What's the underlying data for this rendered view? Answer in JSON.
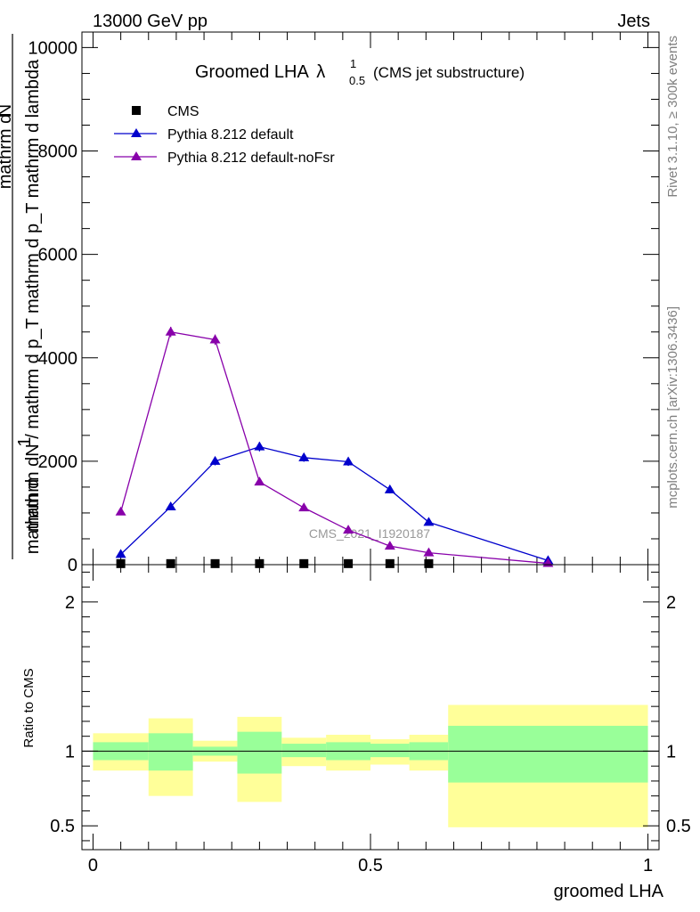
{
  "header": {
    "left": "13000 GeV pp",
    "right": "Jets"
  },
  "side_text": {
    "rivet": "Rivet 3.1.10, ≥ 300k events",
    "mcplots": "mcplots.cern.ch [arXiv:1306.3436]"
  },
  "chart_data": [
    {
      "type": "line",
      "title_main": "Groomed LHA",
      "title_symbol": "λ",
      "title_sup": "1",
      "title_sub": "0.5",
      "title_note": "(CMS jet substructure)",
      "watermark": "CMS_2021_I1920187",
      "ylabel_numerator": "1",
      "ylabel_denominator": "mathrm dN / mathrm d p_T mathrm d p_T mathrm d lambda",
      "ylabel_top_glyphs": "mathrm d",
      "ylabel_top_glyph_N": "N",
      "ylabel_bottom_glyphs": "mathrm d",
      "xlim": [
        -0.02,
        1.02
      ],
      "ylim": [
        0,
        10300
      ],
      "yticks": [
        0,
        2000,
        4000,
        6000,
        8000,
        10000
      ],
      "ytick_labels": [
        "0",
        "2000",
        "4000",
        "6000",
        "8000",
        "10000"
      ],
      "legend": [
        "CMS",
        "Pythia 8.212 default",
        "Pythia 8.212 default-noFsr"
      ],
      "series": [
        {
          "name": "CMS",
          "marker": "square",
          "color": "#000000",
          "x": [
            0.05,
            0.14,
            0.22,
            0.3,
            0.38,
            0.46,
            0.535,
            0.605
          ],
          "y": [
            20,
            20,
            20,
            20,
            20,
            20,
            20,
            20
          ]
        },
        {
          "name": "Pythia 8.212 default",
          "marker": "triangle",
          "color": "#0000cc",
          "x": [
            0.05,
            0.14,
            0.22,
            0.3,
            0.38,
            0.46,
            0.535,
            0.605,
            0.82
          ],
          "y": [
            200,
            1120,
            2000,
            2280,
            2070,
            1990,
            1450,
            820,
            80
          ],
          "err": [
            25,
            50,
            80,
            90,
            80,
            80,
            70,
            40,
            15
          ]
        },
        {
          "name": "Pythia 8.212 default-noFsr",
          "marker": "triangle",
          "color": "#8800aa",
          "x": [
            0.05,
            0.14,
            0.22,
            0.3,
            0.38,
            0.46,
            0.535,
            0.605,
            0.82
          ],
          "y": [
            1020,
            4500,
            4350,
            1600,
            1100,
            670,
            360,
            230,
            25
          ],
          "err": [
            40,
            100,
            100,
            60,
            50,
            40,
            30,
            25,
            10
          ]
        }
      ]
    },
    {
      "type": "area",
      "ylabel": "Ratio to CMS",
      "xlabel": "groomed LHA",
      "xlim": [
        -0.02,
        1.02
      ],
      "ylim": [
        0.34,
        2.25
      ],
      "xticks": [
        0,
        0.5,
        1
      ],
      "xtick_labels": [
        "0",
        "0.5",
        "1"
      ],
      "yticks": [
        0.5,
        1,
        2
      ],
      "ytick_labels": [
        "0.5",
        "1",
        "2"
      ],
      "reference_line": 1,
      "bands": [
        {
          "x0": 0.0,
          "x1": 0.1,
          "g_lo": 0.94,
          "g_hi": 1.06,
          "y_lo": 0.87,
          "y_hi": 1.12
        },
        {
          "x0": 0.1,
          "x1": 0.18,
          "g_lo": 0.87,
          "g_hi": 1.12,
          "y_lo": 0.7,
          "y_hi": 1.22
        },
        {
          "x0": 0.18,
          "x1": 0.26,
          "g_lo": 0.97,
          "g_hi": 1.03,
          "y_lo": 0.93,
          "y_hi": 1.07
        },
        {
          "x0": 0.26,
          "x1": 0.34,
          "g_lo": 0.85,
          "g_hi": 1.13,
          "y_lo": 0.66,
          "y_hi": 1.23
        },
        {
          "x0": 0.34,
          "x1": 0.42,
          "g_lo": 0.96,
          "g_hi": 1.05,
          "y_lo": 0.9,
          "y_hi": 1.09
        },
        {
          "x0": 0.42,
          "x1": 0.5,
          "g_lo": 0.94,
          "g_hi": 1.06,
          "y_lo": 0.87,
          "y_hi": 1.11
        },
        {
          "x0": 0.5,
          "x1": 0.57,
          "g_lo": 0.96,
          "g_hi": 1.05,
          "y_lo": 0.91,
          "y_hi": 1.08
        },
        {
          "x0": 0.57,
          "x1": 0.64,
          "g_lo": 0.94,
          "g_hi": 1.06,
          "y_lo": 0.87,
          "y_hi": 1.11
        },
        {
          "x0": 0.64,
          "x1": 1.0,
          "g_lo": 0.79,
          "g_hi": 1.17,
          "y_lo": 0.49,
          "y_hi": 1.31
        }
      ],
      "band_colors": {
        "inner": "#99ff99",
        "outer": "#ffff99"
      }
    }
  ]
}
